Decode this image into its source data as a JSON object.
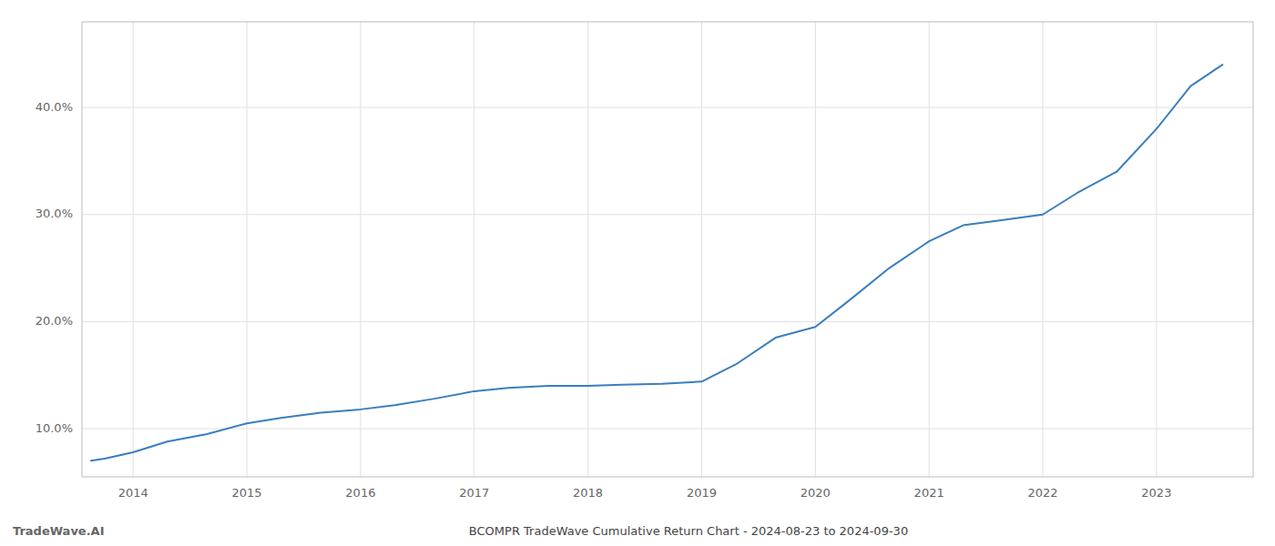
{
  "chart_data": {
    "type": "line",
    "title": "BCOMPR TradeWave Cumulative Return Chart - 2024-08-23 to 2024-09-30",
    "annotations": [
      "TradeWave.AI"
    ],
    "x": [
      2013.63,
      2013.75,
      2014.0,
      2014.3,
      2014.65,
      2015.0,
      2015.3,
      2015.65,
      2016.0,
      2016.3,
      2016.65,
      2017.0,
      2017.3,
      2017.65,
      2018.0,
      2018.3,
      2018.65,
      2019.0,
      2019.3,
      2019.65,
      2020.0,
      2020.3,
      2020.65,
      2021.0,
      2021.3,
      2021.65,
      2022.0,
      2022.3,
      2022.65,
      2023.0,
      2023.3,
      2023.58
    ],
    "values": [
      7.0,
      7.2,
      7.8,
      8.8,
      9.5,
      10.5,
      11.0,
      11.5,
      11.8,
      12.2,
      12.8,
      13.5,
      13.8,
      14.0,
      14.0,
      14.1,
      14.2,
      14.4,
      16.0,
      18.5,
      19.5,
      22.0,
      25.0,
      27.5,
      29.0,
      29.5,
      30.0,
      32.0,
      34.0,
      38.0,
      42.0,
      44.0
    ],
    "color": "#3a7ebf",
    "xlim": [
      2013.55,
      2023.85
    ],
    "xticks": [
      2014,
      2015,
      2016,
      2017,
      2018,
      2019,
      2020,
      2021,
      2022,
      2023
    ],
    "ylim": [
      5.5,
      48.0
    ],
    "yticks": [
      {
        "value": 10.0,
        "label": "10.0%"
      },
      {
        "value": 20.0,
        "label": "20.0%"
      },
      {
        "value": 30.0,
        "label": "30.0%"
      },
      {
        "value": 40.0,
        "label": "40.0%"
      }
    ],
    "grid": true
  }
}
